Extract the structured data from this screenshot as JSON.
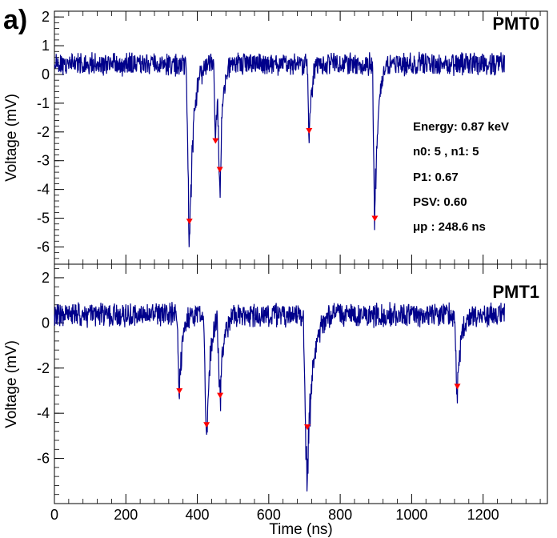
{
  "figure_label": "a)",
  "colors": {
    "trace": "#00008B",
    "marker": "#FF0000",
    "axis": "#000000"
  },
  "chart_data": [
    {
      "type": "line",
      "panel": "PMT0",
      "title": "PMT0",
      "xlabel": "",
      "ylabel": "Voltage (mV)",
      "xlim": [
        0,
        1380
      ],
      "ylim": [
        -6.6,
        2.2
      ],
      "yticks": [
        2,
        1,
        0,
        -1,
        -2,
        -3,
        -4,
        -5,
        -6
      ],
      "ytick_labels": [
        "2",
        "1",
        "0",
        "-1",
        "-2",
        "-3",
        "-4",
        "-5",
        "-6"
      ],
      "noise_band": {
        "baseline": 0.35,
        "noise_amplitude": 0.45,
        "x_start": 0,
        "x_end": 1260
      },
      "pulses": [
        {
          "x": 378,
          "min": -5.8,
          "width": 7
        },
        {
          "x": 451,
          "min": -2.4,
          "width": 4
        },
        {
          "x": 463,
          "min": -3.6,
          "width": 5
        },
        {
          "x": 713,
          "min": -2.3,
          "width": 4
        },
        {
          "x": 897,
          "min": -5.3,
          "width": 5
        }
      ],
      "markers": [
        {
          "x": 378,
          "y": -5.1
        },
        {
          "x": 451,
          "y": -2.3
        },
        {
          "x": 463,
          "y": -3.3
        },
        {
          "x": 713,
          "y": -1.95
        },
        {
          "x": 897,
          "y": -5.0
        }
      ],
      "annotations": [
        "Energy: 0.87 keV",
        "n0: 5 , n1: 5",
        "P1: 0.67",
        "PSV: 0.60",
        "μp : 248.6 ns"
      ]
    },
    {
      "type": "line",
      "panel": "PMT1",
      "title": "PMT1",
      "xlabel": "Time (ns)",
      "ylabel": "Voltage (mV)",
      "xlim": [
        0,
        1380
      ],
      "ylim": [
        -8.0,
        2.6
      ],
      "xticks": [
        0,
        200,
        400,
        600,
        800,
        1000,
        1200
      ],
      "xtick_labels": [
        "0",
        "200",
        "400",
        "600",
        "800",
        "1000",
        "1200"
      ],
      "yticks": [
        2,
        0,
        -2,
        -4,
        -6
      ],
      "ytick_labels": [
        "2",
        "0",
        "-2",
        "-4",
        "-6"
      ],
      "noise_band": {
        "baseline": 0.35,
        "noise_amplitude": 0.6,
        "x_start": 0,
        "x_end": 1260
      },
      "pulses": [
        {
          "x": 350,
          "min": -3.2,
          "width": 5
        },
        {
          "x": 426,
          "min": -5.3,
          "width": 6
        },
        {
          "x": 464,
          "min": -3.4,
          "width": 6
        },
        {
          "x": 708,
          "min": -7.0,
          "width": 9
        },
        {
          "x": 1128,
          "min": -3.2,
          "width": 6
        }
      ],
      "markers": [
        {
          "x": 350,
          "y": -3.0
        },
        {
          "x": 426,
          "y": -4.5
        },
        {
          "x": 464,
          "y": -3.2
        },
        {
          "x": 708,
          "y": -4.6
        },
        {
          "x": 1128,
          "y": -2.8
        }
      ]
    }
  ]
}
